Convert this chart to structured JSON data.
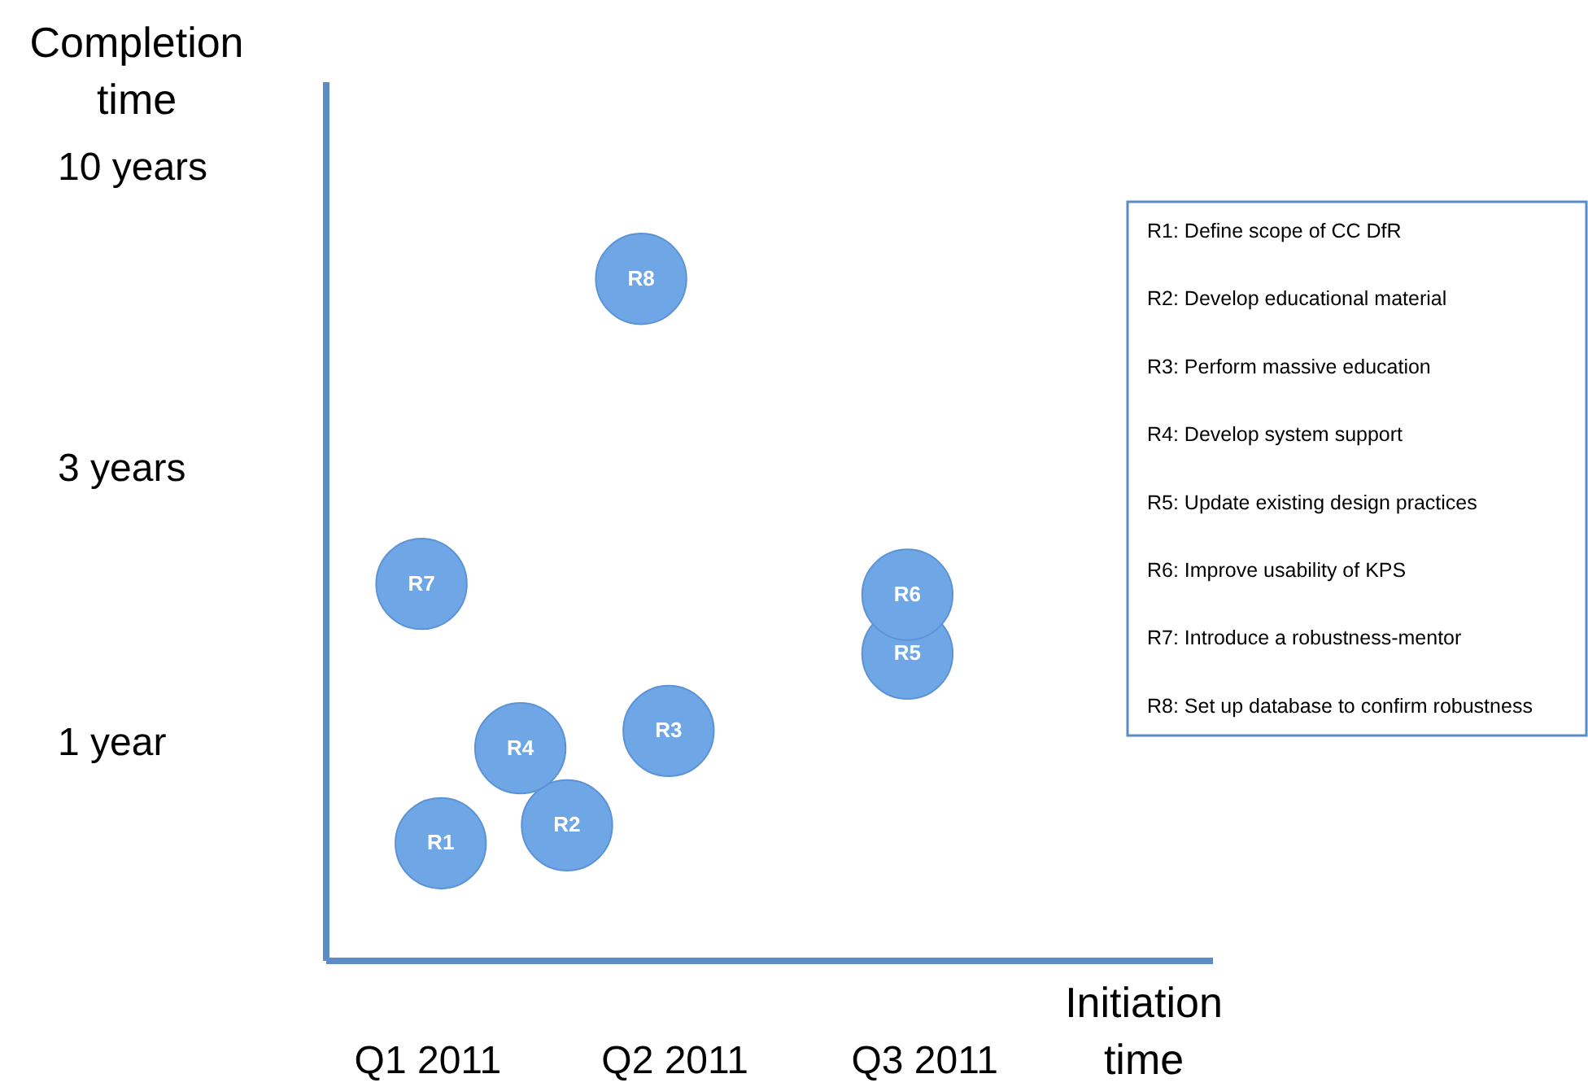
{
  "chart_data": {
    "type": "scatter",
    "xlabel": "Initiation time",
    "ylabel": "Completion time",
    "xlim": [
      "2010-11-25",
      "2011-10-14"
    ],
    "ylim": [
      0.42,
      14.1
    ],
    "log": "y",
    "xticks": [
      {
        "value": "2011-01-01",
        "label": "Q1 2011"
      },
      {
        "value": "2011-04-01",
        "label": "Q2 2011"
      },
      {
        "value": "2011-07-01",
        "label": "Q3 2011"
      }
    ],
    "yticks": [
      {
        "value": 1,
        "label": "1 year"
      },
      {
        "value": 3,
        "label": "3 years"
      },
      {
        "value": 10,
        "label": "10 years"
      }
    ],
    "grid": false,
    "legend": false,
    "marker": "circle",
    "series": [
      {
        "name": "R1",
        "color": "#6fa7e6",
        "x": [
          "2011-01-06"
        ],
        "values": [
          0.67
        ]
      },
      {
        "name": "R2",
        "color": "#6fa7e6",
        "x": [
          "2011-02-21"
        ],
        "values": [
          0.72
        ]
      },
      {
        "name": "R3",
        "color": "#6fa7e6",
        "x": [
          "2011-03-30"
        ],
        "values": [
          1.05
        ]
      },
      {
        "name": "R4",
        "color": "#6fa7e6",
        "x": [
          "2011-02-04"
        ],
        "values": [
          0.98
        ]
      },
      {
        "name": "R5",
        "color": "#6fa7e6",
        "x": [
          "2011-06-25"
        ],
        "values": [
          1.43
        ]
      },
      {
        "name": "R6",
        "color": "#6fa7e6",
        "x": [
          "2011-06-25"
        ],
        "values": [
          1.81
        ]
      },
      {
        "name": "R7",
        "color": "#6fa7e6",
        "x": [
          "2010-12-30"
        ],
        "values": [
          1.89
        ]
      },
      {
        "name": "R8",
        "color": "#6fa7e6",
        "x": [
          "2011-03-20"
        ],
        "values": [
          6.4
        ]
      }
    ],
    "annotations": [
      "R1: Define scope of CC DfR",
      "R2: Develop educational material",
      "R3: Perform massive education",
      "R4: Develop system support",
      "R5: Update existing design practices",
      "R6: Improve usability of KPS",
      "R7: Introduce a robustness-mentor",
      "R8: Set up database to confirm robustness"
    ]
  }
}
